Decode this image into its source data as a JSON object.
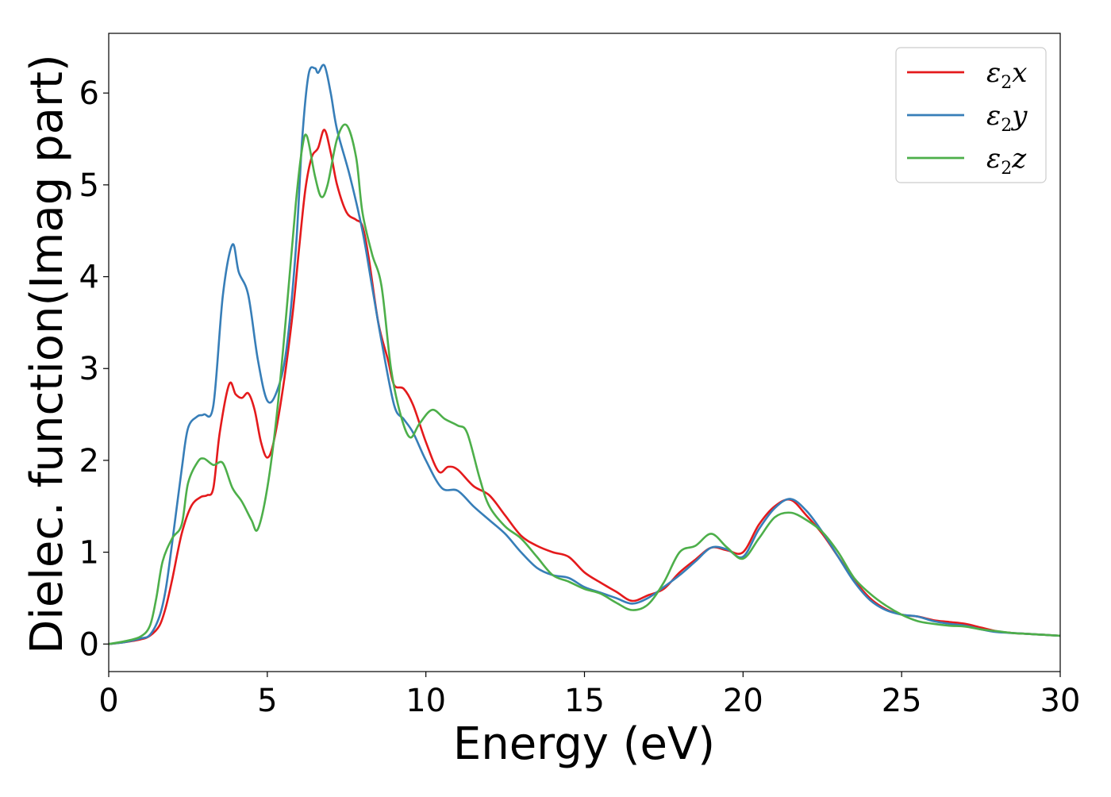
{
  "chart_data": {
    "type": "line",
    "xlabel": "Energy (eV)",
    "ylabel": "Dielec. function(Imag part)",
    "xlim": [
      0,
      30
    ],
    "ylim": [
      -0.3,
      6.65
    ],
    "xticks": [
      0,
      5,
      10,
      15,
      20,
      25,
      30
    ],
    "yticks": [
      0,
      1,
      2,
      3,
      4,
      5,
      6
    ],
    "xtick_labels": [
      "0",
      "5",
      "10",
      "15",
      "20",
      "25",
      "30"
    ],
    "ytick_labels": [
      "0",
      "1",
      "2",
      "3",
      "4",
      "5",
      "6"
    ],
    "grid": false,
    "legend_position": "top-right",
    "series": [
      {
        "name": "ε2x",
        "legend_base": "ε",
        "legend_sub": "2",
        "legend_suffix": "x",
        "color": "#e41a1c",
        "points": [
          [
            0,
            0
          ],
          [
            0.5,
            0.02
          ],
          [
            1.0,
            0.05
          ],
          [
            1.3,
            0.09
          ],
          [
            1.6,
            0.2
          ],
          [
            1.8,
            0.4
          ],
          [
            2.0,
            0.7
          ],
          [
            2.3,
            1.2
          ],
          [
            2.6,
            1.5
          ],
          [
            2.9,
            1.6
          ],
          [
            3.1,
            1.62
          ],
          [
            3.3,
            1.7
          ],
          [
            3.5,
            2.3
          ],
          [
            3.8,
            2.83
          ],
          [
            4.0,
            2.72
          ],
          [
            4.2,
            2.68
          ],
          [
            4.4,
            2.73
          ],
          [
            4.6,
            2.55
          ],
          [
            4.8,
            2.2
          ],
          [
            5.0,
            2.03
          ],
          [
            5.2,
            2.2
          ],
          [
            5.5,
            2.8
          ],
          [
            5.8,
            3.6
          ],
          [
            6.0,
            4.3
          ],
          [
            6.2,
            4.95
          ],
          [
            6.4,
            5.3
          ],
          [
            6.6,
            5.4
          ],
          [
            6.8,
            5.6
          ],
          [
            7.0,
            5.35
          ],
          [
            7.2,
            5.0
          ],
          [
            7.5,
            4.7
          ],
          [
            7.8,
            4.62
          ],
          [
            8.0,
            4.55
          ],
          [
            8.2,
            4.2
          ],
          [
            8.5,
            3.5
          ],
          [
            8.8,
            3.1
          ],
          [
            9.0,
            2.82
          ],
          [
            9.3,
            2.78
          ],
          [
            9.6,
            2.6
          ],
          [
            10.0,
            2.2
          ],
          [
            10.4,
            1.88
          ],
          [
            10.7,
            1.93
          ],
          [
            11.0,
            1.9
          ],
          [
            11.5,
            1.72
          ],
          [
            12.0,
            1.62
          ],
          [
            12.5,
            1.4
          ],
          [
            13.0,
            1.18
          ],
          [
            13.5,
            1.07
          ],
          [
            14.0,
            1.0
          ],
          [
            14.5,
            0.95
          ],
          [
            15.0,
            0.78
          ],
          [
            15.5,
            0.67
          ],
          [
            16.0,
            0.57
          ],
          [
            16.5,
            0.47
          ],
          [
            17.0,
            0.53
          ],
          [
            17.5,
            0.6
          ],
          [
            18.0,
            0.78
          ],
          [
            18.5,
            0.92
          ],
          [
            19.0,
            1.05
          ],
          [
            19.5,
            1.02
          ],
          [
            20.0,
            1.0
          ],
          [
            20.5,
            1.3
          ],
          [
            21.0,
            1.5
          ],
          [
            21.5,
            1.57
          ],
          [
            22.0,
            1.4
          ],
          [
            22.5,
            1.2
          ],
          [
            23.0,
            0.95
          ],
          [
            23.5,
            0.7
          ],
          [
            24.0,
            0.5
          ],
          [
            24.5,
            0.38
          ],
          [
            25.0,
            0.32
          ],
          [
            25.5,
            0.3
          ],
          [
            26.0,
            0.26
          ],
          [
            26.5,
            0.24
          ],
          [
            27.0,
            0.22
          ],
          [
            27.5,
            0.18
          ],
          [
            28.0,
            0.14
          ],
          [
            28.5,
            0.12
          ],
          [
            29.0,
            0.11
          ],
          [
            29.5,
            0.1
          ],
          [
            30.0,
            0.09
          ]
        ]
      },
      {
        "name": "ε2y",
        "legend_base": "ε",
        "legend_sub": "2",
        "legend_suffix": "y",
        "color": "#377eb8",
        "points": [
          [
            0,
            0
          ],
          [
            0.5,
            0.02
          ],
          [
            1.0,
            0.06
          ],
          [
            1.3,
            0.1
          ],
          [
            1.6,
            0.3
          ],
          [
            1.8,
            0.6
          ],
          [
            2.0,
            1.1
          ],
          [
            2.3,
            1.9
          ],
          [
            2.5,
            2.35
          ],
          [
            2.8,
            2.48
          ],
          [
            3.0,
            2.5
          ],
          [
            3.3,
            2.6
          ],
          [
            3.6,
            3.8
          ],
          [
            3.9,
            4.35
          ],
          [
            4.1,
            4.05
          ],
          [
            4.4,
            3.8
          ],
          [
            4.7,
            3.1
          ],
          [
            5.0,
            2.65
          ],
          [
            5.3,
            2.75
          ],
          [
            5.6,
            3.2
          ],
          [
            5.9,
            4.3
          ],
          [
            6.1,
            5.5
          ],
          [
            6.3,
            6.2
          ],
          [
            6.5,
            6.27
          ],
          [
            6.6,
            6.22
          ],
          [
            6.8,
            6.3
          ],
          [
            7.0,
            6.0
          ],
          [
            7.2,
            5.6
          ],
          [
            7.6,
            5.1
          ],
          [
            8.0,
            4.5
          ],
          [
            8.3,
            3.9
          ],
          [
            8.6,
            3.3
          ],
          [
            9.0,
            2.6
          ],
          [
            9.3,
            2.45
          ],
          [
            9.6,
            2.3
          ],
          [
            10.0,
            2.0
          ],
          [
            10.5,
            1.7
          ],
          [
            11.0,
            1.67
          ],
          [
            11.5,
            1.5
          ],
          [
            12.0,
            1.35
          ],
          [
            12.5,
            1.2
          ],
          [
            13.0,
            1.0
          ],
          [
            13.5,
            0.83
          ],
          [
            14.0,
            0.75
          ],
          [
            14.5,
            0.72
          ],
          [
            15.0,
            0.62
          ],
          [
            15.5,
            0.56
          ],
          [
            16.0,
            0.5
          ],
          [
            16.5,
            0.44
          ],
          [
            17.0,
            0.5
          ],
          [
            17.5,
            0.62
          ],
          [
            18.0,
            0.75
          ],
          [
            18.5,
            0.9
          ],
          [
            19.0,
            1.05
          ],
          [
            19.5,
            1.03
          ],
          [
            20.0,
            0.95
          ],
          [
            20.5,
            1.25
          ],
          [
            21.0,
            1.48
          ],
          [
            21.5,
            1.58
          ],
          [
            22.0,
            1.45
          ],
          [
            22.5,
            1.22
          ],
          [
            23.0,
            0.95
          ],
          [
            23.5,
            0.68
          ],
          [
            24.0,
            0.48
          ],
          [
            24.5,
            0.37
          ],
          [
            25.0,
            0.32
          ],
          [
            25.5,
            0.3
          ],
          [
            26.0,
            0.25
          ],
          [
            26.5,
            0.22
          ],
          [
            27.0,
            0.2
          ],
          [
            27.5,
            0.16
          ],
          [
            28.0,
            0.13
          ],
          [
            28.5,
            0.12
          ],
          [
            29.0,
            0.11
          ],
          [
            29.5,
            0.1
          ],
          [
            30.0,
            0.09
          ]
        ]
      },
      {
        "name": "ε2z",
        "legend_base": "ε",
        "legend_sub": "2",
        "legend_suffix": "z",
        "color": "#4daf4a",
        "points": [
          [
            0,
            0
          ],
          [
            0.5,
            0.03
          ],
          [
            1.0,
            0.08
          ],
          [
            1.3,
            0.2
          ],
          [
            1.5,
            0.5
          ],
          [
            1.7,
            0.9
          ],
          [
            2.0,
            1.15
          ],
          [
            2.3,
            1.3
          ],
          [
            2.5,
            1.75
          ],
          [
            2.8,
            1.98
          ],
          [
            3.0,
            2.02
          ],
          [
            3.3,
            1.95
          ],
          [
            3.6,
            1.97
          ],
          [
            3.9,
            1.7
          ],
          [
            4.2,
            1.55
          ],
          [
            4.5,
            1.35
          ],
          [
            4.7,
            1.25
          ],
          [
            5.0,
            1.7
          ],
          [
            5.3,
            2.5
          ],
          [
            5.6,
            3.6
          ],
          [
            5.9,
            4.8
          ],
          [
            6.1,
            5.4
          ],
          [
            6.25,
            5.53
          ],
          [
            6.5,
            5.1
          ],
          [
            6.7,
            4.87
          ],
          [
            6.9,
            5.0
          ],
          [
            7.2,
            5.5
          ],
          [
            7.5,
            5.65
          ],
          [
            7.8,
            5.3
          ],
          [
            8.0,
            4.7
          ],
          [
            8.3,
            4.25
          ],
          [
            8.6,
            3.9
          ],
          [
            8.9,
            3.0
          ],
          [
            9.2,
            2.5
          ],
          [
            9.5,
            2.25
          ],
          [
            9.8,
            2.4
          ],
          [
            10.2,
            2.55
          ],
          [
            10.6,
            2.45
          ],
          [
            11.0,
            2.38
          ],
          [
            11.3,
            2.3
          ],
          [
            11.7,
            1.8
          ],
          [
            12.0,
            1.5
          ],
          [
            12.5,
            1.28
          ],
          [
            13.0,
            1.15
          ],
          [
            13.5,
            0.95
          ],
          [
            14.0,
            0.75
          ],
          [
            14.5,
            0.68
          ],
          [
            15.0,
            0.6
          ],
          [
            15.5,
            0.55
          ],
          [
            16.0,
            0.45
          ],
          [
            16.5,
            0.37
          ],
          [
            17.0,
            0.43
          ],
          [
            17.5,
            0.67
          ],
          [
            18.0,
            1.0
          ],
          [
            18.5,
            1.07
          ],
          [
            19.0,
            1.2
          ],
          [
            19.5,
            1.05
          ],
          [
            20.0,
            0.93
          ],
          [
            20.5,
            1.15
          ],
          [
            21.0,
            1.38
          ],
          [
            21.5,
            1.43
          ],
          [
            22.0,
            1.35
          ],
          [
            22.5,
            1.22
          ],
          [
            23.0,
            1.0
          ],
          [
            23.5,
            0.72
          ],
          [
            24.0,
            0.55
          ],
          [
            24.5,
            0.42
          ],
          [
            25.0,
            0.32
          ],
          [
            25.5,
            0.25
          ],
          [
            26.0,
            0.22
          ],
          [
            26.5,
            0.2
          ],
          [
            27.0,
            0.19
          ],
          [
            27.5,
            0.16
          ],
          [
            28.0,
            0.14
          ],
          [
            28.5,
            0.12
          ],
          [
            29.0,
            0.11
          ],
          [
            29.5,
            0.1
          ],
          [
            30.0,
            0.09
          ]
        ]
      }
    ]
  }
}
